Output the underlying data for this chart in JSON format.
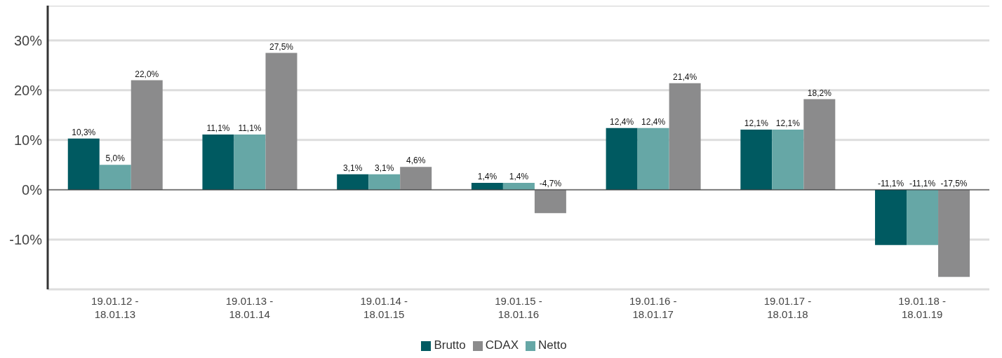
{
  "chart_data": {
    "type": "bar",
    "categories": [
      "19.01.12 -\n18.01.13",
      "19.01.13 -\n18.01.14",
      "19.01.14 -\n18.01.15",
      "19.01.15 -\n18.01.16",
      "19.01.16 -\n18.01.17",
      "19.01.17 -\n18.01.18",
      "19.01.18 -\n18.01.19"
    ],
    "series": [
      {
        "name": "Brutto",
        "color": "#005a61",
        "values": [
          10.3,
          11.1,
          3.1,
          1.4,
          12.4,
          12.1,
          -11.1
        ],
        "value_labels": [
          "10,3%",
          "11,1%",
          "3,1%",
          "1,4%",
          "12,4%",
          "12,1%",
          "-11,1%"
        ]
      },
      {
        "name": "Netto",
        "color": "#66a7a6",
        "values": [
          5.0,
          11.1,
          3.1,
          1.4,
          12.4,
          12.1,
          -11.1
        ],
        "value_labels": [
          "5,0%",
          "11,1%",
          "3,1%",
          "1,4%",
          "12,4%",
          "12,1%",
          "-11,1%"
        ]
      },
      {
        "name": "CDAX",
        "color": "#8b8b8c",
        "values": [
          22.0,
          27.5,
          4.6,
          -4.7,
          21.4,
          18.2,
          -17.5
        ],
        "value_labels": [
          "22,0%",
          "27,5%",
          "4,6%",
          "-4,7%",
          "21,4%",
          "18,2%",
          "-17,5%"
        ]
      }
    ],
    "ylim": [
      -20,
      37
    ],
    "yticks": [
      {
        "value": -10,
        "label": "-10%"
      },
      {
        "value": 0,
        "label": "0%"
      },
      {
        "value": 10,
        "label": "10%"
      },
      {
        "value": 20,
        "label": "20%"
      },
      {
        "value": 30,
        "label": "30%"
      }
    ],
    "grid": "y",
    "legend": "bottom",
    "ref_lines": [
      {
        "axis": "y",
        "value": 0,
        "color": "#333333"
      }
    ]
  }
}
